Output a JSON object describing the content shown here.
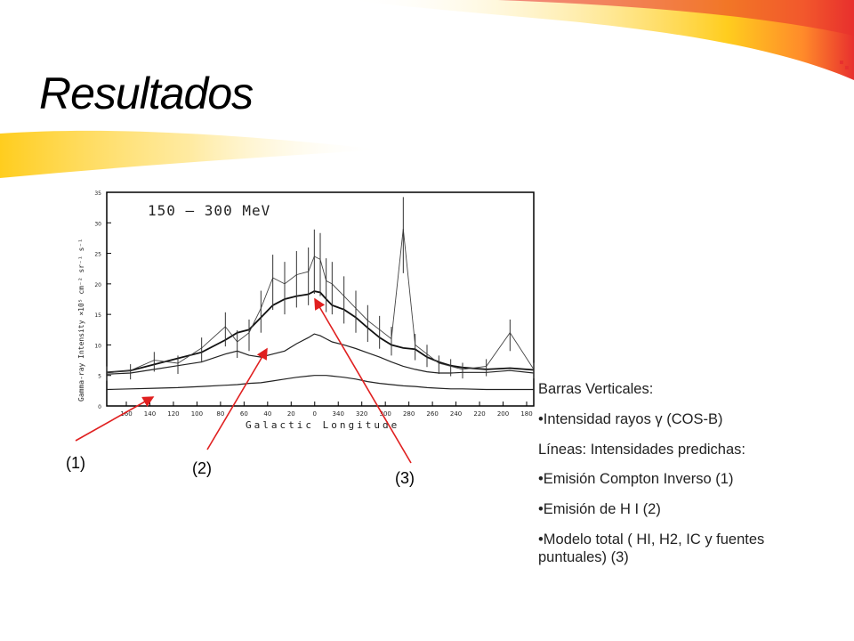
{
  "slide": {
    "title": "Resultados"
  },
  "colors": {
    "arrow": "#e02020",
    "deco_red": "#e8302e",
    "deco_yellow": "#ffd21e"
  },
  "callouts": [
    "(1)",
    "(2)",
    "(3)"
  ],
  "notes": [
    "Barras Verticales:",
    "•Intensidad rayos γ (COS-B)",
    "Líneas: Intensidades predichas:",
    "•Emisión Compton Inverso (1)",
    "•Emisión de H I (2)",
    "•Modelo total ( HI, H2, IC y fuentes puntuales) (3)"
  ],
  "chart_data": {
    "type": "line",
    "annotation": "150 – 300 MeV",
    "xlabel": "Galactic Longitude",
    "ylabel": "Gamma-ray Intensity ×10⁵ cm⁻² sr⁻¹ s⁻¹",
    "x_tick_labels": [
      "160",
      "140",
      "120",
      "100",
      "80",
      "60",
      "40",
      "20",
      "0",
      "340",
      "320",
      "300",
      "280",
      "260",
      "240",
      "220",
      "200",
      "180"
    ],
    "yticks": [
      0,
      5,
      10,
      15,
      20,
      25,
      30,
      35
    ],
    "ylim": [
      0,
      35
    ],
    "x": [
      180,
      160,
      140,
      120,
      100,
      80,
      70,
      60,
      50,
      40,
      30,
      20,
      10,
      5,
      0,
      -5,
      -10,
      -20,
      -30,
      -40,
      -50,
      -60,
      -70,
      -80,
      -90,
      -100,
      -110,
      -120,
      -140,
      -160,
      -180
    ],
    "series": [
      {
        "label": "(1)",
        "values": [
          2.7,
          2.8,
          2.9,
          3.0,
          3.2,
          3.4,
          3.5,
          3.7,
          3.8,
          4.1,
          4.4,
          4.7,
          4.9,
          5.0,
          5.0,
          5.0,
          4.9,
          4.7,
          4.4,
          4.0,
          3.7,
          3.5,
          3.3,
          3.2,
          3.0,
          2.9,
          2.8,
          2.8,
          2.7,
          2.7,
          2.7
        ]
      },
      {
        "label": "(2)",
        "values": [
          5.2,
          5.4,
          6.0,
          6.6,
          7.2,
          8.5,
          9.0,
          8.3,
          8.0,
          8.5,
          9.0,
          10.2,
          11.2,
          11.8,
          11.5,
          11.0,
          10.5,
          10.0,
          9.4,
          8.7,
          8.0,
          7.2,
          6.5,
          6.0,
          5.6,
          5.4,
          5.4,
          5.5,
          5.5,
          5.8,
          5.4
        ]
      },
      {
        "label": "(3)",
        "values": [
          5.5,
          5.8,
          6.8,
          7.8,
          8.8,
          10.8,
          12.0,
          12.5,
          14.5,
          16.5,
          17.5,
          18.0,
          18.3,
          18.8,
          18.6,
          17.5,
          16.5,
          15.8,
          14.5,
          12.8,
          11.2,
          10.0,
          9.5,
          9.3,
          8.0,
          7.2,
          6.6,
          6.3,
          6.0,
          6.2,
          5.9
        ]
      },
      {
        "label": "Intensidad rayos γ (COS-B)",
        "values": [
          5.5,
          5.8,
          7.5,
          7.0,
          9.5,
          13.0,
          10.5,
          12.0,
          16.0,
          21.0,
          20.0,
          21.5,
          22.0,
          24.5,
          24.0,
          20.5,
          20.0,
          18.0,
          16.0,
          14.0,
          12.5,
          11.0,
          29.0,
          10.0,
          8.5,
          7.0,
          6.5,
          6.0,
          6.5,
          12.0,
          6.0
        ]
      }
    ]
  }
}
